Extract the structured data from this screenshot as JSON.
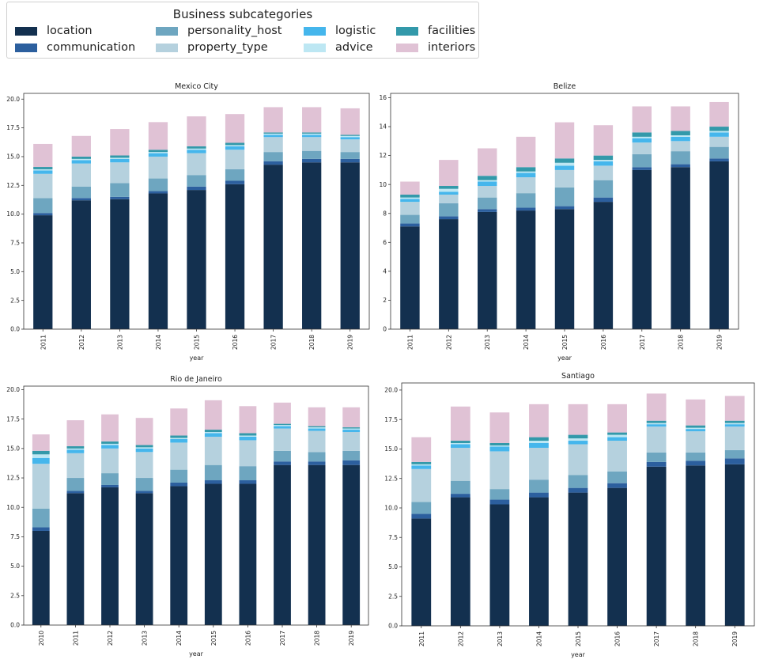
{
  "legend": {
    "title": "Business subcategories",
    "items": [
      {
        "name": "location",
        "color": "#13304f"
      },
      {
        "name": "communication",
        "color": "#2c5f9e"
      },
      {
        "name": "personality_host",
        "color": "#6ea6c0"
      },
      {
        "name": "property_type",
        "color": "#b5d1de"
      },
      {
        "name": "logistic",
        "color": "#45b6ec"
      },
      {
        "name": "advice",
        "color": "#bde7f3"
      },
      {
        "name": "facilities",
        "color": "#3399aa"
      },
      {
        "name": "interiors",
        "color": "#e0c2d5"
      }
    ]
  },
  "chart_data": [
    {
      "type": "bar",
      "stacked": true,
      "title": "Mexico City",
      "xlabel": "year",
      "ylabel": "",
      "ylim": [
        0,
        20.5
      ],
      "yticks": [
        0.0,
        2.5,
        5.0,
        7.5,
        10.0,
        12.5,
        15.0,
        17.5,
        20.0
      ],
      "ytick_labels": [
        "0.0",
        "2.5",
        "5.0",
        "7.5",
        "10.0",
        "12.5",
        "15.0",
        "17.5",
        "20.0"
      ],
      "categories": [
        "2011",
        "2012",
        "2013",
        "2014",
        "2015",
        "2016",
        "2017",
        "2018",
        "2019"
      ],
      "series": [
        {
          "name": "location",
          "values": [
            9.9,
            11.2,
            11.3,
            11.8,
            12.1,
            12.6,
            14.3,
            14.5,
            14.5
          ]
        },
        {
          "name": "communication",
          "values": [
            0.2,
            0.2,
            0.2,
            0.2,
            0.3,
            0.3,
            0.3,
            0.3,
            0.3
          ]
        },
        {
          "name": "personality_host",
          "values": [
            1.3,
            1.0,
            1.2,
            1.1,
            1.0,
            1.0,
            0.8,
            0.7,
            0.6
          ]
        },
        {
          "name": "property_type",
          "values": [
            2.1,
            2.0,
            1.8,
            1.9,
            1.9,
            1.7,
            1.3,
            1.2,
            1.1
          ]
        },
        {
          "name": "logistic",
          "values": [
            0.3,
            0.3,
            0.3,
            0.3,
            0.3,
            0.3,
            0.2,
            0.2,
            0.2
          ]
        },
        {
          "name": "advice",
          "values": [
            0.1,
            0.1,
            0.1,
            0.1,
            0.1,
            0.1,
            0.1,
            0.1,
            0.1
          ]
        },
        {
          "name": "facilities",
          "values": [
            0.2,
            0.2,
            0.2,
            0.2,
            0.2,
            0.2,
            0.1,
            0.1,
            0.1
          ]
        },
        {
          "name": "interiors",
          "values": [
            2.0,
            1.8,
            2.3,
            2.4,
            2.6,
            2.5,
            2.2,
            2.2,
            2.3
          ]
        }
      ]
    },
    {
      "type": "bar",
      "stacked": true,
      "title": "Belize",
      "xlabel": "year",
      "ylabel": "",
      "ylim": [
        0,
        16.3
      ],
      "yticks": [
        0,
        2,
        4,
        6,
        8,
        10,
        12,
        14,
        16
      ],
      "ytick_labels": [
        "0",
        "2",
        "4",
        "6",
        "8",
        "10",
        "12",
        "14",
        "16"
      ],
      "categories": [
        "2011",
        "2012",
        "2013",
        "2014",
        "2015",
        "2016",
        "2017",
        "2018",
        "2019"
      ],
      "series": [
        {
          "name": "location",
          "values": [
            7.1,
            7.6,
            8.1,
            8.2,
            8.3,
            8.8,
            11.0,
            11.2,
            11.6
          ]
        },
        {
          "name": "communication",
          "values": [
            0.2,
            0.2,
            0.2,
            0.2,
            0.2,
            0.3,
            0.2,
            0.2,
            0.2
          ]
        },
        {
          "name": "personality_host",
          "values": [
            0.6,
            0.9,
            0.8,
            1.0,
            1.3,
            1.2,
            0.9,
            0.9,
            0.8
          ]
        },
        {
          "name": "property_type",
          "values": [
            0.9,
            0.6,
            0.8,
            1.1,
            1.2,
            1.0,
            0.8,
            0.7,
            0.7
          ]
        },
        {
          "name": "logistic",
          "values": [
            0.2,
            0.2,
            0.3,
            0.3,
            0.3,
            0.3,
            0.3,
            0.3,
            0.3
          ]
        },
        {
          "name": "advice",
          "values": [
            0.1,
            0.2,
            0.1,
            0.1,
            0.2,
            0.1,
            0.1,
            0.1,
            0.1
          ]
        },
        {
          "name": "facilities",
          "values": [
            0.2,
            0.2,
            0.3,
            0.3,
            0.3,
            0.3,
            0.3,
            0.3,
            0.3
          ]
        },
        {
          "name": "interiors",
          "values": [
            0.9,
            1.8,
            1.9,
            2.1,
            2.5,
            2.1,
            1.8,
            1.7,
            1.7
          ]
        }
      ]
    },
    {
      "type": "bar",
      "stacked": true,
      "title": "Rio de Janeiro",
      "xlabel": "year",
      "ylabel": "",
      "ylim": [
        0,
        20.3
      ],
      "yticks": [
        0.0,
        2.5,
        5.0,
        7.5,
        10.0,
        12.5,
        15.0,
        17.5,
        20.0
      ],
      "ytick_labels": [
        "0.0",
        "2.5",
        "5.0",
        "7.5",
        "10.0",
        "12.5",
        "15.0",
        "17.5",
        "20.0"
      ],
      "categories": [
        "2010",
        "2011",
        "2012",
        "2013",
        "2014",
        "2015",
        "2016",
        "2017",
        "2018",
        "2019"
      ],
      "series": [
        {
          "name": "location",
          "values": [
            8.0,
            11.2,
            11.7,
            11.2,
            11.8,
            12.0,
            12.0,
            13.6,
            13.6,
            13.6
          ]
        },
        {
          "name": "communication",
          "values": [
            0.3,
            0.2,
            0.2,
            0.2,
            0.3,
            0.3,
            0.3,
            0.3,
            0.3,
            0.4
          ]
        },
        {
          "name": "personality_host",
          "values": [
            1.6,
            1.1,
            1.0,
            1.1,
            1.1,
            1.3,
            1.2,
            0.9,
            0.8,
            0.8
          ]
        },
        {
          "name": "property_type",
          "values": [
            3.8,
            2.1,
            2.1,
            2.2,
            2.3,
            2.4,
            2.2,
            1.9,
            1.8,
            1.6
          ]
        },
        {
          "name": "logistic",
          "values": [
            0.5,
            0.3,
            0.3,
            0.3,
            0.3,
            0.3,
            0.3,
            0.2,
            0.2,
            0.2
          ]
        },
        {
          "name": "advice",
          "values": [
            0.3,
            0.1,
            0.1,
            0.1,
            0.1,
            0.1,
            0.1,
            0.1,
            0.1,
            0.1
          ]
        },
        {
          "name": "facilities",
          "values": [
            0.3,
            0.2,
            0.2,
            0.2,
            0.2,
            0.2,
            0.2,
            0.1,
            0.1,
            0.1
          ]
        },
        {
          "name": "interiors",
          "values": [
            1.4,
            2.2,
            2.3,
            2.3,
            2.3,
            2.5,
            2.3,
            1.8,
            1.6,
            1.7
          ]
        }
      ]
    },
    {
      "type": "bar",
      "stacked": true,
      "title": "Santiago",
      "xlabel": "year",
      "ylabel": "",
      "ylim": [
        0,
        20.6
      ],
      "yticks": [
        0.0,
        2.5,
        5.0,
        7.5,
        10.0,
        12.5,
        15.0,
        17.5,
        20.0
      ],
      "ytick_labels": [
        "0.0",
        "2.5",
        "5.0",
        "7.5",
        "10.0",
        "12.5",
        "15.0",
        "17.5",
        "20.0"
      ],
      "categories": [
        "2011",
        "2012",
        "2013",
        "2014",
        "2015",
        "2016",
        "2017",
        "2018",
        "2019"
      ],
      "series": [
        {
          "name": "location",
          "values": [
            9.1,
            10.9,
            10.3,
            10.9,
            11.3,
            11.7,
            13.5,
            13.6,
            13.7
          ]
        },
        {
          "name": "communication",
          "values": [
            0.4,
            0.3,
            0.4,
            0.4,
            0.4,
            0.4,
            0.4,
            0.4,
            0.5
          ]
        },
        {
          "name": "personality_host",
          "values": [
            1.0,
            1.1,
            0.9,
            1.1,
            1.1,
            1.0,
            0.8,
            0.7,
            0.7
          ]
        },
        {
          "name": "property_type",
          "values": [
            2.8,
            2.8,
            3.2,
            2.7,
            2.6,
            2.6,
            2.2,
            1.8,
            2.0
          ]
        },
        {
          "name": "logistic",
          "values": [
            0.3,
            0.3,
            0.4,
            0.4,
            0.3,
            0.3,
            0.2,
            0.2,
            0.2
          ]
        },
        {
          "name": "advice",
          "values": [
            0.1,
            0.1,
            0.1,
            0.2,
            0.2,
            0.2,
            0.1,
            0.1,
            0.1
          ]
        },
        {
          "name": "facilities",
          "values": [
            0.2,
            0.2,
            0.2,
            0.3,
            0.3,
            0.2,
            0.2,
            0.2,
            0.2
          ]
        },
        {
          "name": "interiors",
          "values": [
            2.1,
            2.9,
            2.6,
            2.8,
            2.6,
            2.4,
            2.3,
            2.2,
            2.1
          ]
        }
      ]
    }
  ]
}
